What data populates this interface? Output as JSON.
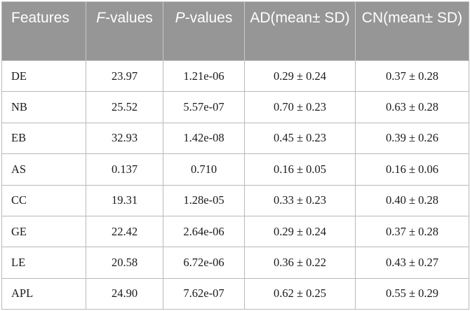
{
  "table": {
    "headers": [
      {
        "main": "Features",
        "italic": "",
        "rest": ""
      },
      {
        "main": "",
        "italic": "F",
        "rest": "-values"
      },
      {
        "main": "",
        "italic": "P",
        "rest": "-values"
      },
      {
        "main": "AD(mean± SD)",
        "italic": "",
        "rest": ""
      },
      {
        "main": "CN(mean± SD)",
        "italic": "",
        "rest": ""
      }
    ],
    "rows": [
      [
        "DE",
        "23.97",
        "1.21e-06",
        "0.29 ± 0.24",
        "0.37 ± 0.28"
      ],
      [
        "NB",
        "25.52",
        "5.57e-07",
        "0.70 ± 0.23",
        "0.63 ± 0.28"
      ],
      [
        "EB",
        "32.93",
        "1.42e-08",
        "0.45 ± 0.23",
        "0.39 ± 0.26"
      ],
      [
        "AS",
        "0.137",
        "0.710",
        "0.16 ± 0.05",
        "0.16 ± 0.06"
      ],
      [
        "CC",
        "19.31",
        "1.28e-05",
        "0.33 ± 0.23",
        "0.40 ± 0.28"
      ],
      [
        "GE",
        "22.42",
        "2.64e-06",
        "0.29 ± 0.24",
        "0.37 ± 0.28"
      ],
      [
        "LE",
        "20.58",
        "6.72e-06",
        "0.36 ± 0.22",
        "0.43 ± 0.27"
      ],
      [
        "APL",
        "24.90",
        "7.62e-07",
        "0.62 ± 0.25",
        "0.55 ± 0.29"
      ]
    ]
  }
}
